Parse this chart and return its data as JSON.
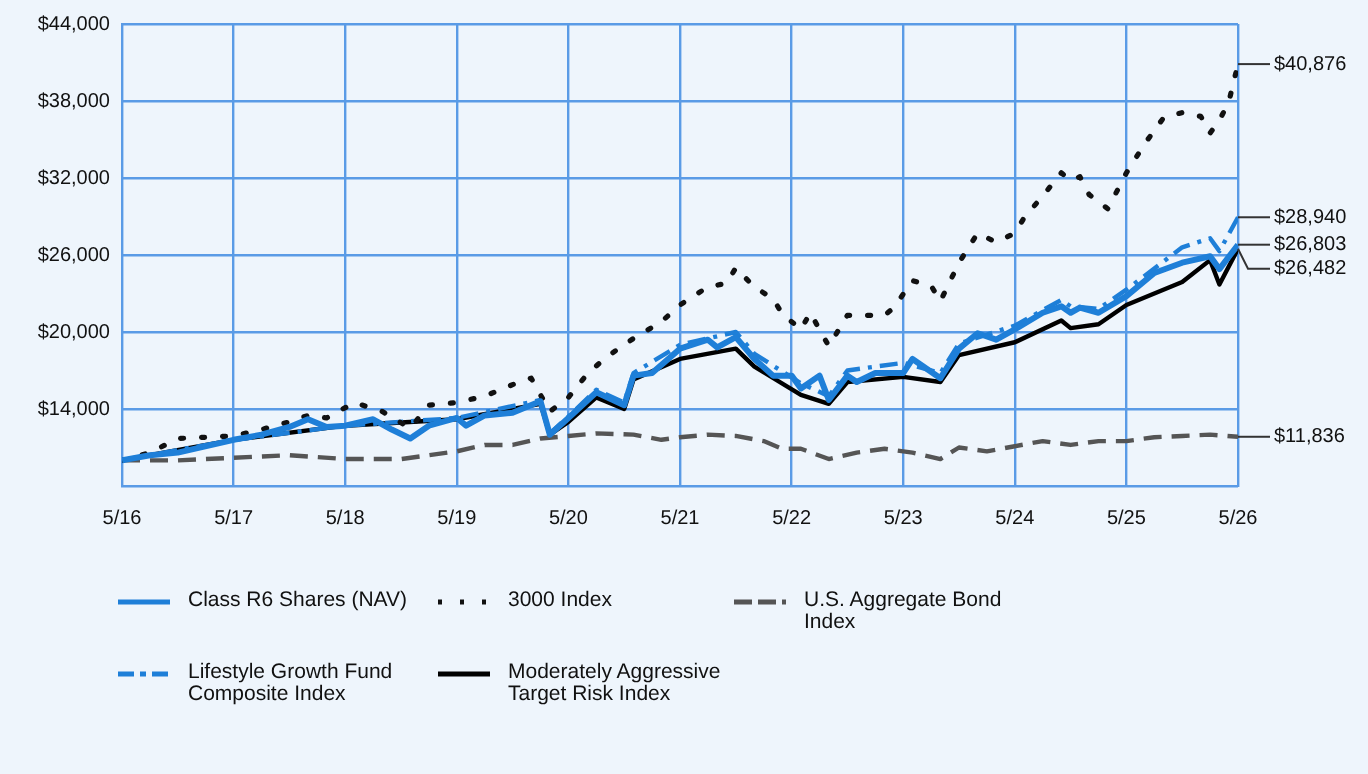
{
  "chart_data": {
    "type": "line",
    "grid": true,
    "legend": "bottom",
    "xlim": [
      "2016-05",
      "2026-05"
    ],
    "xticks": [
      {
        "value": "2016-05",
        "label": "5/16"
      },
      {
        "value": "2017-05",
        "label": "5/17"
      },
      {
        "value": "2018-05",
        "label": "5/18"
      },
      {
        "value": "2019-05",
        "label": "5/19"
      },
      {
        "value": "2020-05",
        "label": "5/20"
      },
      {
        "value": "2021-05",
        "label": "5/21"
      },
      {
        "value": "2022-05",
        "label": "5/22"
      },
      {
        "value": "2023-05",
        "label": "5/23"
      },
      {
        "value": "2024-05",
        "label": "5/24"
      },
      {
        "value": "2025-05",
        "label": "5/25"
      },
      {
        "value": "2026-05",
        "label": "5/26"
      }
    ],
    "ylim": [
      8000,
      44000
    ],
    "yticks": [
      {
        "value": 8000,
        "label": null
      },
      {
        "value": 14000,
        "label": "$14,000"
      },
      {
        "value": 20000,
        "label": "$20,000"
      },
      {
        "value": 26000,
        "label": "$26,000"
      },
      {
        "value": 32000,
        "label": "$32,000"
      },
      {
        "value": 38000,
        "label": "$38,000"
      },
      {
        "value": 44000,
        "label": "$44,000"
      }
    ],
    "series": [
      {
        "name": "Class R6 Shares (NAV)",
        "color": "#1e7fd8",
        "line_style": "solid",
        "x": [
          "2016-05",
          "2016-08",
          "2016-11",
          "2017-05",
          "2017-08",
          "2017-11",
          "2018-01",
          "2018-03",
          "2018-05",
          "2018-08",
          "2018-10",
          "2018-12",
          "2019-02",
          "2019-05",
          "2019-06",
          "2019-08",
          "2019-11",
          "2020-02",
          "2020-03",
          "2020-05",
          "2020-08",
          "2020-11",
          "2020-12",
          "2021-02",
          "2021-05",
          "2021-08",
          "2021-09",
          "2021-11",
          "2022-01",
          "2022-03",
          "2022-05",
          "2022-06",
          "2022-08",
          "2022-09",
          "2022-11",
          "2022-12",
          "2023-02",
          "2023-05",
          "2023-06",
          "2023-09",
          "2023-11",
          "2024-01",
          "2024-03",
          "2024-05",
          "2024-08",
          "2024-10",
          "2024-11",
          "2024-12",
          "2025-02",
          "2025-05",
          "2025-08",
          "2025-11",
          "2026-02",
          "2026-03",
          "2026-05"
        ],
        "values": [
          10000,
          10400,
          10600,
          11600,
          12000,
          12600,
          13200,
          12600,
          12700,
          13200,
          12400,
          11700,
          12700,
          13300,
          12700,
          13500,
          13700,
          14600,
          12000,
          13300,
          15300,
          14300,
          16600,
          16800,
          18700,
          19400,
          18800,
          19600,
          17900,
          16600,
          16600,
          15600,
          16600,
          14700,
          16600,
          16100,
          16800,
          16800,
          17900,
          16400,
          18700,
          19900,
          19400,
          20200,
          21500,
          22000,
          21500,
          21900,
          21500,
          22800,
          24600,
          25400,
          25900,
          24900,
          26803
        ]
      },
      {
        "name": "3000 Index",
        "color": "#111111",
        "line_style": "dotted",
        "x": [
          "2016-05",
          "2016-08",
          "2016-11",
          "2017-05",
          "2017-08",
          "2017-11",
          "2018-01",
          "2018-03",
          "2018-06",
          "2018-09",
          "2018-12",
          "2019-02",
          "2019-05",
          "2019-08",
          "2019-11",
          "2020-01",
          "2020-03",
          "2020-05",
          "2020-07",
          "2020-09",
          "2020-12",
          "2021-03",
          "2021-05",
          "2021-06",
          "2021-08",
          "2021-10",
          "2021-11",
          "2022-01",
          "2022-03",
          "2022-04",
          "2022-06",
          "2022-07",
          "2022-09",
          "2022-11",
          "2023-01",
          "2023-03",
          "2023-04",
          "2023-06",
          "2023-08",
          "2023-09",
          "2023-11",
          "2024-01",
          "2024-03",
          "2024-05",
          "2024-06",
          "2024-08",
          "2024-10",
          "2024-11",
          "2024-12",
          "2025-01",
          "2025-03",
          "2025-04",
          "2025-05",
          "2025-07",
          "2025-09",
          "2025-11",
          "2026-01",
          "2026-02",
          "2026-03",
          "2026-04",
          "2026-05"
        ],
        "values": [
          10000,
          10600,
          11700,
          11900,
          12400,
          13000,
          13500,
          13300,
          14500,
          13800,
          12500,
          14300,
          14500,
          15000,
          15900,
          16400,
          13800,
          14900,
          16700,
          18000,
          19500,
          20800,
          22100,
          22600,
          23500,
          23800,
          25000,
          23500,
          22600,
          21400,
          20200,
          21500,
          18900,
          21300,
          21300,
          21300,
          21900,
          24000,
          23600,
          22400,
          25400,
          27700,
          27000,
          27700,
          28900,
          30600,
          32400,
          31800,
          32100,
          30700,
          29600,
          31000,
          32400,
          34700,
          36700,
          37100,
          36800,
          35500,
          36500,
          37900,
          40876
        ]
      },
      {
        "name": "U.S. Aggregate Bond Index",
        "color": "#555555",
        "line_style": "dashed",
        "x": [
          "2016-05",
          "2016-08",
          "2016-11",
          "2017-05",
          "2017-11",
          "2018-05",
          "2018-11",
          "2019-05",
          "2019-08",
          "2019-11",
          "2020-02",
          "2020-05",
          "2020-08",
          "2020-12",
          "2021-03",
          "2021-05",
          "2021-08",
          "2021-11",
          "2022-02",
          "2022-04",
          "2022-06",
          "2022-09",
          "2022-12",
          "2023-03",
          "2023-06",
          "2023-09",
          "2023-11",
          "2024-02",
          "2024-05",
          "2024-08",
          "2024-11",
          "2025-02",
          "2025-05",
          "2025-08",
          "2025-11",
          "2026-02",
          "2026-05"
        ],
        "values": [
          10000,
          10000,
          10000,
          10200,
          10400,
          10100,
          10100,
          10700,
          11200,
          11200,
          11700,
          11900,
          12100,
          12000,
          11600,
          11800,
          12000,
          11900,
          11500,
          10900,
          10900,
          10100,
          10600,
          10900,
          10600,
          10100,
          11000,
          10700,
          11100,
          11500,
          11200,
          11500,
          11500,
          11800,
          11900,
          12000,
          11836
        ]
      },
      {
        "name": "Lifestyle Growth Fund Composite Index",
        "color": "#1e7fd8",
        "line_style": "dashdot",
        "x": [
          "2016-05",
          "2017-05",
          "2018-05",
          "2019-05",
          "2020-02",
          "2020-03",
          "2020-05",
          "2020-08",
          "2020-11",
          "2020-12",
          "2021-05",
          "2021-11",
          "2022-01",
          "2022-06",
          "2022-09",
          "2022-11",
          "2023-05",
          "2023-09",
          "2023-11",
          "2024-05",
          "2024-10",
          "2024-11",
          "2025-02",
          "2025-05",
          "2025-11",
          "2026-02",
          "2026-03",
          "2026-05"
        ],
        "values": [
          10000,
          11600,
          12700,
          13300,
          14700,
          12100,
          13400,
          15500,
          14500,
          16800,
          19000,
          20000,
          18300,
          16000,
          15000,
          17000,
          17600,
          16800,
          19100,
          20500,
          22500,
          22000,
          21800,
          23300,
          26600,
          27300,
          26300,
          28940
        ]
      },
      {
        "name": "Moderately Aggressive Target Risk Index",
        "color": "#000000",
        "line_style": "solid",
        "x": [
          "2016-05",
          "2017-05",
          "2018-05",
          "2019-05",
          "2020-02",
          "2020-03",
          "2020-05",
          "2020-08",
          "2020-11",
          "2020-12",
          "2021-05",
          "2021-11",
          "2022-01",
          "2022-06",
          "2022-09",
          "2022-11",
          "2023-05",
          "2023-09",
          "2023-11",
          "2024-05",
          "2024-10",
          "2024-11",
          "2025-02",
          "2025-05",
          "2025-11",
          "2026-02",
          "2026-03",
          "2026-05"
        ],
        "values": [
          10000,
          11600,
          12700,
          13200,
          14400,
          12000,
          13000,
          14900,
          14000,
          16300,
          17900,
          18700,
          17300,
          15100,
          14400,
          16100,
          16500,
          16100,
          18200,
          19200,
          20900,
          20300,
          20600,
          22100,
          23900,
          25600,
          23700,
          26482
        ]
      }
    ],
    "annotations": [
      {
        "text": "$40,876",
        "x": "2026-05",
        "y": 40876
      },
      {
        "text": "$28,940",
        "x": "2026-05",
        "y": 28940
      },
      {
        "text": "$26,803",
        "x": "2026-05",
        "y": 26803
      },
      {
        "text": "$26,482",
        "x": "2026-05",
        "y": 26482
      },
      {
        "text": "$11,836",
        "x": "2026-05",
        "y": 11836
      }
    ]
  }
}
